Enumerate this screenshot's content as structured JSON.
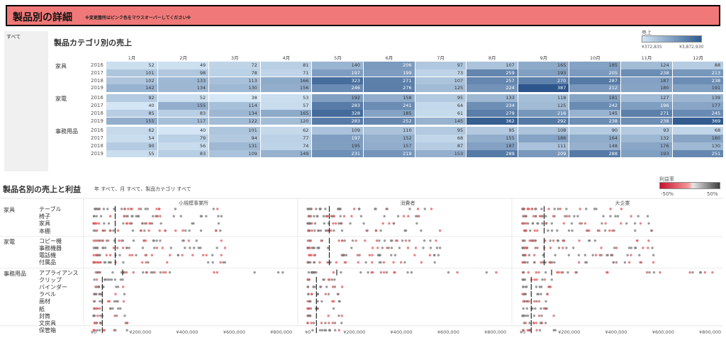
{
  "header": {
    "title": "製品別の詳細",
    "subtitle": "※変更箇所はピンク色をマウスオーバーしてください※"
  },
  "filter_panel": {
    "label": "すべて"
  },
  "heatmap_section": {
    "title": "製品カテゴリ別の売上",
    "legend_title": "売上",
    "legend_min": "¥372,835",
    "legend_max": "¥3,872,930",
    "months": [
      "1月",
      "2月",
      "3月",
      "4月",
      "5月",
      "6月",
      "7月",
      "8月",
      "9月",
      "10月",
      "11月",
      "12月"
    ],
    "years": [
      "2016",
      "2017",
      "2018",
      "2019"
    ],
    "categories": [
      {
        "name": "家具",
        "rows": [
          [
            52,
            49,
            72,
            81,
            140,
            206,
            97,
            107,
            165,
            185,
            124,
            88
          ],
          [
            101,
            98,
            78,
            71,
            197,
            199,
            73,
            259,
            193,
            205,
            238,
            213
          ],
          [
            102,
            133,
            113,
            166,
            323,
            271,
            107,
            257,
            270,
            287,
            187,
            238
          ],
          [
            142,
            134,
            130,
            156,
            246,
            276,
            125,
            224,
            387,
            212,
            180,
            191
          ]
        ]
      },
      {
        "name": "家電",
        "rows": [
          [
            92,
            52,
            38,
            53,
            192,
            158,
            95,
            133,
            118,
            181,
            127,
            139
          ],
          [
            40,
            155,
            114,
            57,
            283,
            241,
            64,
            234,
            125,
            242,
            196,
            177
          ],
          [
            85,
            83,
            134,
            165,
            328,
            185,
            61,
            279,
            216,
            145,
            271,
            245
          ],
          [
            155,
            117,
            122,
            120,
            283,
            252,
            145,
            362,
            292,
            238,
            238,
            369
          ]
        ]
      },
      {
        "name": "事務用品",
        "rows": [
          [
            62,
            40,
            101,
            62,
            109,
            110,
            95,
            95,
            108,
            90,
            93,
            68
          ],
          [
            54,
            79,
            94,
            77,
            197,
            152,
            68,
            155,
            186,
            164,
            132,
            180
          ],
          [
            90,
            56,
            131,
            74,
            195,
            157,
            87,
            187,
            111,
            148,
            176,
            130
          ],
          [
            55,
            83,
            109,
            149,
            231,
            219,
            153,
            289,
            209,
            288,
            193,
            251
          ]
        ]
      }
    ]
  },
  "dot_section": {
    "title": "製品名別の売上と利益",
    "filter_text": "年 すべて、月 すべて、製品カテゴリ すべて",
    "legend_title": "利益率",
    "legend_min": "-50%",
    "legend_max": "50%",
    "segments": [
      "小規模事業所",
      "消費者",
      "大企業"
    ],
    "x_ticks": [
      "¥0",
      "¥200,000",
      "¥400,000",
      "¥600,000",
      "¥800,000"
    ],
    "groups": [
      {
        "category": "家具",
        "products": [
          "テーブル",
          "椅子",
          "家具",
          "本棚"
        ]
      },
      {
        "category": "家電",
        "products": [
          "コピー機",
          "事務機器",
          "電話機",
          "付属品"
        ]
      },
      {
        "category": "事務用品",
        "products": [
          "アプライアンス",
          "クリップ",
          "バインダー",
          "ラベル",
          "画材",
          "紙",
          "封筒",
          "文房具",
          "保管箱"
        ]
      }
    ],
    "colors": {
      "positive": "#7a7a7a",
      "negative": "#e05a5a",
      "mark": "#222222"
    }
  }
}
